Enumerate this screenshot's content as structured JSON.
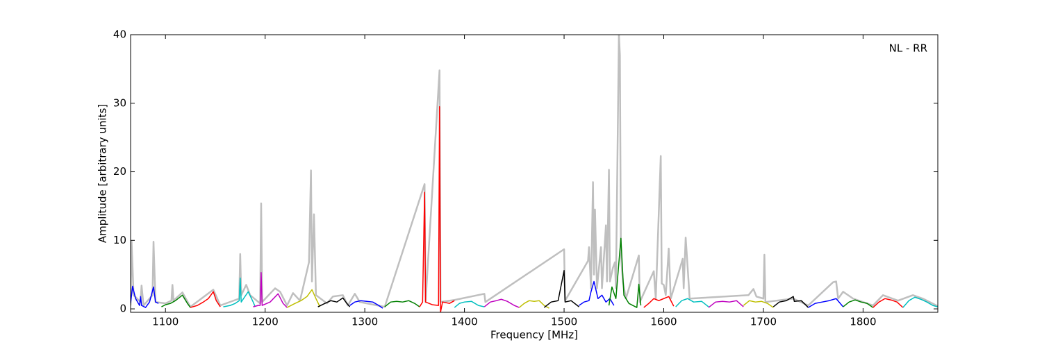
{
  "chart_data": {
    "type": "line",
    "xlabel": "Frequency [MHz]",
    "ylabel": "Amplitude [arbitrary units]",
    "annotation": "NL - RR",
    "xlim": [
      1065,
      1875
    ],
    "ylim": [
      -0.5,
      40
    ],
    "xticks": [
      1100,
      1200,
      1300,
      1400,
      1500,
      1600,
      1700,
      1800
    ],
    "yticks": [
      0,
      10,
      20,
      30,
      40
    ],
    "grid": false,
    "series": [
      {
        "color": "#bfbfbf",
        "x": [
          1065,
          1066,
          1068,
          1075,
          1076,
          1078,
          1087,
          1088,
          1090,
          1100,
          1106,
          1107,
          1108,
          1117,
          1125,
          1148,
          1155,
          1174,
          1175,
          1176,
          1181,
          1185,
          1195,
          1196,
          1197,
          1210,
          1215,
          1222,
          1228,
          1235,
          1244,
          1246,
          1247,
          1249,
          1251,
          1262,
          1268,
          1278,
          1283,
          1290,
          1295,
          1320,
          1360,
          1361,
          1375,
          1376,
          1390,
          1420,
          1421,
          1500,
          1501,
          1524,
          1525,
          1527,
          1529,
          1530,
          1531,
          1533,
          1537,
          1538,
          1542,
          1543,
          1545,
          1546,
          1549,
          1551,
          1552,
          1555,
          1556,
          1557,
          1559,
          1562,
          1575,
          1576,
          1590,
          1592,
          1597,
          1598,
          1600,
          1602,
          1605,
          1607,
          1617,
          1619,
          1620,
          1622,
          1624,
          1626,
          1685,
          1690,
          1693,
          1700,
          1701,
          1702,
          1730,
          1745,
          1770,
          1773,
          1775,
          1780,
          1790,
          1810,
          1820,
          1835,
          1850,
          1860,
          1875
        ],
        "values": [
          0.5,
          9.8,
          2,
          1,
          3.4,
          0.5,
          2,
          9.8,
          1,
          0.8,
          1.2,
          3.5,
          1.2,
          2.4,
          0.3,
          2.8,
          0.5,
          1.5,
          8,
          2,
          3.5,
          2,
          0.8,
          15.4,
          1,
          3,
          2.5,
          0.5,
          2.3,
          1.2,
          6.8,
          20.2,
          4,
          13.8,
          2,
          0.8,
          1.8,
          2.0,
          0.5,
          2.2,
          1.0,
          0.3,
          18.2,
          1,
          34.8,
          1,
          1.3,
          2.2,
          1.0,
          8.7,
          1.2,
          7,
          9,
          3,
          18.5,
          5,
          14.5,
          3,
          9,
          3,
          12.2,
          4,
          20.3,
          4,
          6,
          6.8,
          3,
          40,
          37,
          8,
          4,
          1.5,
          7.8,
          1,
          5.5,
          1.5,
          22.3,
          3.7,
          3.5,
          2,
          8.8,
          1.5,
          6.3,
          7.3,
          3,
          10.4,
          6,
          1.5,
          2,
          2.9,
          1.8,
          1.5,
          7.9,
          1,
          1.5,
          0.5,
          3.9,
          4,
          1.5,
          2.5,
          1.5,
          0.5,
          2.0,
          1.2,
          2.0,
          1.5,
          0.4
        ]
      },
      {
        "color": "#0000ff",
        "x": [
          1065,
          1067,
          1070,
          1074,
          1075,
          1076,
          1080,
          1084,
          1088,
          1090,
          1093
        ],
        "values": [
          0.8,
          3.3,
          1.5,
          0.5,
          1.8,
          0.5,
          0.2,
          1.0,
          3.2,
          1.0,
          0.8
        ]
      },
      {
        "color": "#008000",
        "x": [
          1096,
          1100,
          1105,
          1110,
          1117,
          1122,
          1125
        ],
        "values": [
          0.3,
          0.6,
          0.8,
          1.2,
          2.0,
          0.8,
          0.2
        ]
      },
      {
        "color": "#ff0000",
        "x": [
          1125,
          1132,
          1138,
          1143,
          1148,
          1151,
          1155
        ],
        "values": [
          0.2,
          0.5,
          1.0,
          1.5,
          2.5,
          1.2,
          0.3
        ]
      },
      {
        "color": "#00bfbf",
        "x": [
          1158,
          1165,
          1170,
          1174,
          1175,
          1176,
          1183,
          1188,
          1190
        ],
        "values": [
          0.3,
          0.5,
          0.8,
          1.2,
          4.5,
          1.0,
          2.5,
          1.0,
          0.3
        ]
      },
      {
        "color": "#bf00bf",
        "x": [
          1188,
          1193,
          1195,
          1196,
          1197,
          1205,
          1213,
          1218,
          1222
        ],
        "values": [
          0.3,
          0.5,
          0.5,
          5.3,
          0.5,
          1.0,
          2.2,
          0.8,
          0.2
        ]
      },
      {
        "color": "#bfbf00",
        "x": [
          1222,
          1230,
          1236,
          1242,
          1247,
          1251,
          1255
        ],
        "values": [
          0.2,
          0.8,
          1.2,
          1.8,
          2.8,
          1.5,
          0.3
        ]
      },
      {
        "color": "#000000",
        "x": [
          1253,
          1260,
          1266,
          1272,
          1278,
          1282,
          1285
        ],
        "values": [
          0.3,
          0.8,
          1.2,
          1.0,
          1.6,
          0.8,
          0.3
        ]
      },
      {
        "color": "#0000ff",
        "x": [
          1285,
          1290,
          1296,
          1302,
          1308,
          1314,
          1318
        ],
        "values": [
          0.5,
          1.0,
          1.2,
          1.1,
          1.0,
          0.5,
          0.1
        ]
      },
      {
        "color": "#008000",
        "x": [
          1320,
          1326,
          1332,
          1338,
          1344,
          1350,
          1355
        ],
        "values": [
          0.3,
          1.0,
          1.1,
          1.0,
          1.2,
          0.8,
          0.3
        ]
      },
      {
        "color": "#ff0000",
        "x": [
          1355,
          1358,
          1360,
          1361,
          1368,
          1374,
          1375,
          1376,
          1378,
          1385,
          1390
        ],
        "values": [
          0.3,
          1.0,
          17,
          1.0,
          0.6,
          0.5,
          29.5,
          -0.5,
          1.0,
          0.8,
          1.2
        ]
      },
      {
        "color": "#00bfbf",
        "x": [
          1390,
          1395,
          1400,
          1407,
          1414,
          1420
        ],
        "values": [
          0.2,
          0.8,
          1.0,
          1.1,
          0.5,
          0.3
        ]
      },
      {
        "color": "#bf00bf",
        "x": [
          1420,
          1426,
          1432,
          1437,
          1443,
          1450,
          1455
        ],
        "values": [
          0.3,
          1.0,
          1.2,
          1.4,
          1.1,
          0.5,
          0.2
        ]
      },
      {
        "color": "#bfbf00",
        "x": [
          1455,
          1460,
          1465,
          1470,
          1475,
          1480,
          1485
        ],
        "values": [
          0.2,
          0.8,
          1.2,
          1.1,
          1.2,
          0.5,
          0.1
        ]
      },
      {
        "color": "#000000",
        "x": [
          1480,
          1487,
          1494,
          1500,
          1501,
          1507,
          1515
        ],
        "values": [
          0.2,
          1.0,
          1.2,
          5.6,
          1.0,
          1.2,
          0.3
        ]
      },
      {
        "color": "#0000ff",
        "x": [
          1515,
          1520,
          1525,
          1527,
          1530,
          1534,
          1538,
          1542,
          1546,
          1550
        ],
        "values": [
          0.5,
          1.0,
          1.2,
          2.5,
          4.0,
          1.5,
          2.0,
          1.0,
          1.5,
          0.5
        ]
      },
      {
        "color": "#008000",
        "x": [
          1545,
          1548,
          1552,
          1557,
          1560,
          1565,
          1573,
          1575,
          1577
        ],
        "values": [
          0.5,
          3.2,
          1.5,
          10.3,
          2.0,
          0.8,
          0.2,
          3.6,
          0.5
        ]
      },
      {
        "color": "#ff0000",
        "x": [
          1580,
          1585,
          1590,
          1595,
          1600,
          1605,
          1610
        ],
        "values": [
          0.2,
          0.8,
          1.5,
          1.2,
          1.5,
          1.8,
          0.4
        ]
      },
      {
        "color": "#00bfbf",
        "x": [
          1612,
          1618,
          1624,
          1630,
          1638,
          1645
        ],
        "values": [
          0.3,
          1.2,
          1.5,
          1.0,
          1.1,
          0.3
        ]
      },
      {
        "color": "#bf00bf",
        "x": [
          1645,
          1652,
          1659,
          1666,
          1673,
          1680
        ],
        "values": [
          0.2,
          1.0,
          1.1,
          1.0,
          1.2,
          0.3
        ]
      },
      {
        "color": "#bfbf00",
        "x": [
          1680,
          1686,
          1692,
          1698,
          1704,
          1710
        ],
        "values": [
          0.5,
          1.2,
          1.0,
          1.1,
          0.8,
          0.2
        ]
      },
      {
        "color": "#000000",
        "x": [
          1710,
          1716,
          1723,
          1730,
          1731,
          1738,
          1745
        ],
        "values": [
          0.3,
          1.0,
          1.2,
          1.8,
          1.1,
          1.2,
          0.2
        ]
      },
      {
        "color": "#0000ff",
        "x": [
          1745,
          1752,
          1759,
          1766,
          1773,
          1780
        ],
        "values": [
          0.2,
          0.8,
          1.0,
          1.2,
          1.5,
          0.3
        ]
      },
      {
        "color": "#008000",
        "x": [
          1780,
          1786,
          1792,
          1798,
          1804,
          1810
        ],
        "values": [
          0.3,
          1.0,
          1.3,
          1.0,
          0.8,
          0.2
        ]
      },
      {
        "color": "#ff0000",
        "x": [
          1810,
          1816,
          1822,
          1828,
          1834,
          1840
        ],
        "values": [
          0.2,
          1.0,
          1.5,
          1.3,
          1.0,
          0.2
        ]
      },
      {
        "color": "#00bfbf",
        "x": [
          1840,
          1846,
          1852,
          1858,
          1864,
          1870,
          1875
        ],
        "values": [
          0.2,
          1.2,
          1.7,
          1.4,
          1.0,
          0.5,
          0.3
        ]
      }
    ]
  }
}
